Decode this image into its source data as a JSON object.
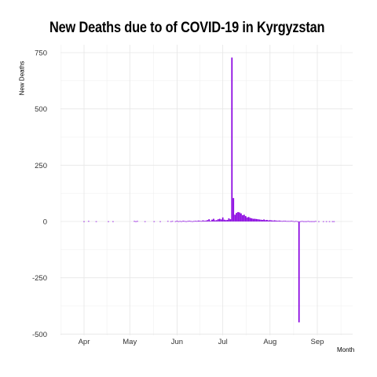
{
  "chart_data": {
    "type": "bar",
    "title": "New Deaths due to of COVID-19 in Kyrgyzstan",
    "xlabel": "Month",
    "ylabel": "New Deaths",
    "ylim": [
      -500,
      750
    ],
    "y_ticks": [
      750,
      500,
      250,
      0,
      -250,
      -500
    ],
    "x_ticks": [
      "Apr",
      "May",
      "Jun",
      "Jul",
      "Aug",
      "Sep"
    ],
    "x_tick_days": [
      1,
      31,
      62,
      92,
      123,
      154
    ],
    "xlim_days": [
      -14,
      171
    ],
    "grid": true,
    "bar_color": "#8800e0",
    "series": [
      {
        "x_day": [
          1,
          4,
          9,
          17,
          20,
          34,
          35,
          36,
          41,
          47,
          51,
          56,
          58,
          59,
          61,
          62,
          63,
          64,
          65,
          66,
          67,
          68,
          69,
          70,
          71,
          72,
          73,
          74,
          75,
          76,
          77,
          78,
          79,
          80,
          81,
          82,
          83,
          84,
          85,
          86,
          87,
          88,
          89,
          90,
          91,
          92,
          93,
          94,
          95,
          96,
          97,
          98,
          99,
          100,
          101,
          102,
          103,
          104,
          105,
          106,
          107,
          108,
          109,
          110,
          111,
          112,
          113,
          114,
          115,
          116,
          117,
          118,
          119,
          120,
          121,
          122,
          123,
          124,
          125,
          126,
          127,
          128,
          129,
          130,
          131,
          132,
          133,
          134,
          135,
          136,
          137,
          138,
          139,
          140,
          141,
          142,
          143,
          144,
          145,
          146,
          147,
          148,
          149,
          150,
          151,
          152,
          153,
          155,
          158,
          160,
          162,
          164,
          165
        ],
        "values": [
          1,
          2,
          1,
          1,
          1,
          2,
          1,
          2,
          1,
          1,
          1,
          2,
          1,
          2,
          1,
          3,
          1,
          2,
          1,
          3,
          2,
          1,
          2,
          3,
          2,
          1,
          2,
          3,
          2,
          4,
          3,
          2,
          5,
          3,
          4,
          6,
          10,
          3,
          8,
          12,
          5,
          6,
          10,
          12,
          9,
          18,
          8,
          6,
          7,
          14,
          10,
          728,
          104,
          30,
          38,
          42,
          40,
          36,
          28,
          30,
          24,
          18,
          20,
          16,
          14,
          12,
          12,
          11,
          10,
          9,
          8,
          7,
          9,
          6,
          7,
          5,
          6,
          5,
          4,
          5,
          4,
          3,
          4,
          3,
          2,
          3,
          3,
          2,
          2,
          2,
          3,
          2,
          1,
          2,
          1,
          -448,
          1,
          2,
          1,
          1,
          1,
          2,
          1,
          1,
          1,
          1,
          2,
          1,
          1,
          1,
          1,
          1,
          1
        ]
      }
    ]
  }
}
